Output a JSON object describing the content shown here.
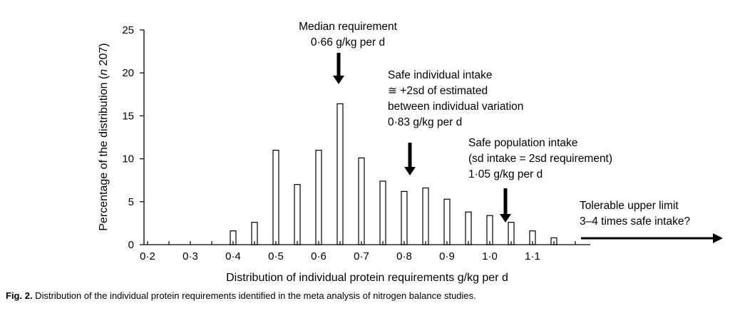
{
  "chart_data": {
    "type": "bar",
    "title": "",
    "xlabel": "Distribution of individual protein requirements g/kg per d",
    "ylabel_parts": [
      "Percentage of the distribution (",
      "n",
      " 207)"
    ],
    "ylim": [
      0,
      25
    ],
    "y_ticks": [
      "0",
      "5",
      "10",
      "15",
      "20",
      "25"
    ],
    "x_tick_labels": [
      "0·2",
      "0·3",
      "0·4",
      "0·5",
      "0·6",
      "0·7",
      "0·8",
      "0·9",
      "1·0",
      "1·1"
    ],
    "x_tick_values": [
      0.2,
      0.3,
      0.4,
      0.5,
      0.6,
      0.7,
      0.8,
      0.9,
      1.0,
      1.1
    ],
    "x": [
      0.4,
      0.45,
      0.5,
      0.55,
      0.6,
      0.65,
      0.7,
      0.75,
      0.8,
      0.85,
      0.9,
      0.95,
      1.0,
      1.05,
      1.1,
      1.15
    ],
    "values": [
      1.6,
      2.6,
      11.0,
      7.0,
      11.0,
      16.4,
      10.1,
      7.4,
      6.2,
      6.6,
      5.3,
      3.8,
      3.4,
      2.6,
      1.6,
      0.8
    ],
    "grid": false,
    "annotations": [
      {
        "lines": [
          "Median requirement",
          "0·66 g/kg per d"
        ],
        "x": 0.66
      },
      {
        "lines": [
          "Safe individual intake",
          "≅ +2sd of estimated",
          "between individual variation",
          "0·83 g/kg per d"
        ],
        "x": 0.83
      },
      {
        "lines": [
          "Safe population intake",
          "(sd intake = 2sd requirement)",
          "1·05 g/kg per d"
        ],
        "x": 1.05
      },
      {
        "lines": [
          "Tolerable upper limit",
          "3–4 times safe intake?"
        ]
      }
    ]
  },
  "caption": {
    "label": "Fig. 2.",
    "text": " Distribution of the individual protein requirements identified in the meta analysis of nitrogen balance studies."
  }
}
